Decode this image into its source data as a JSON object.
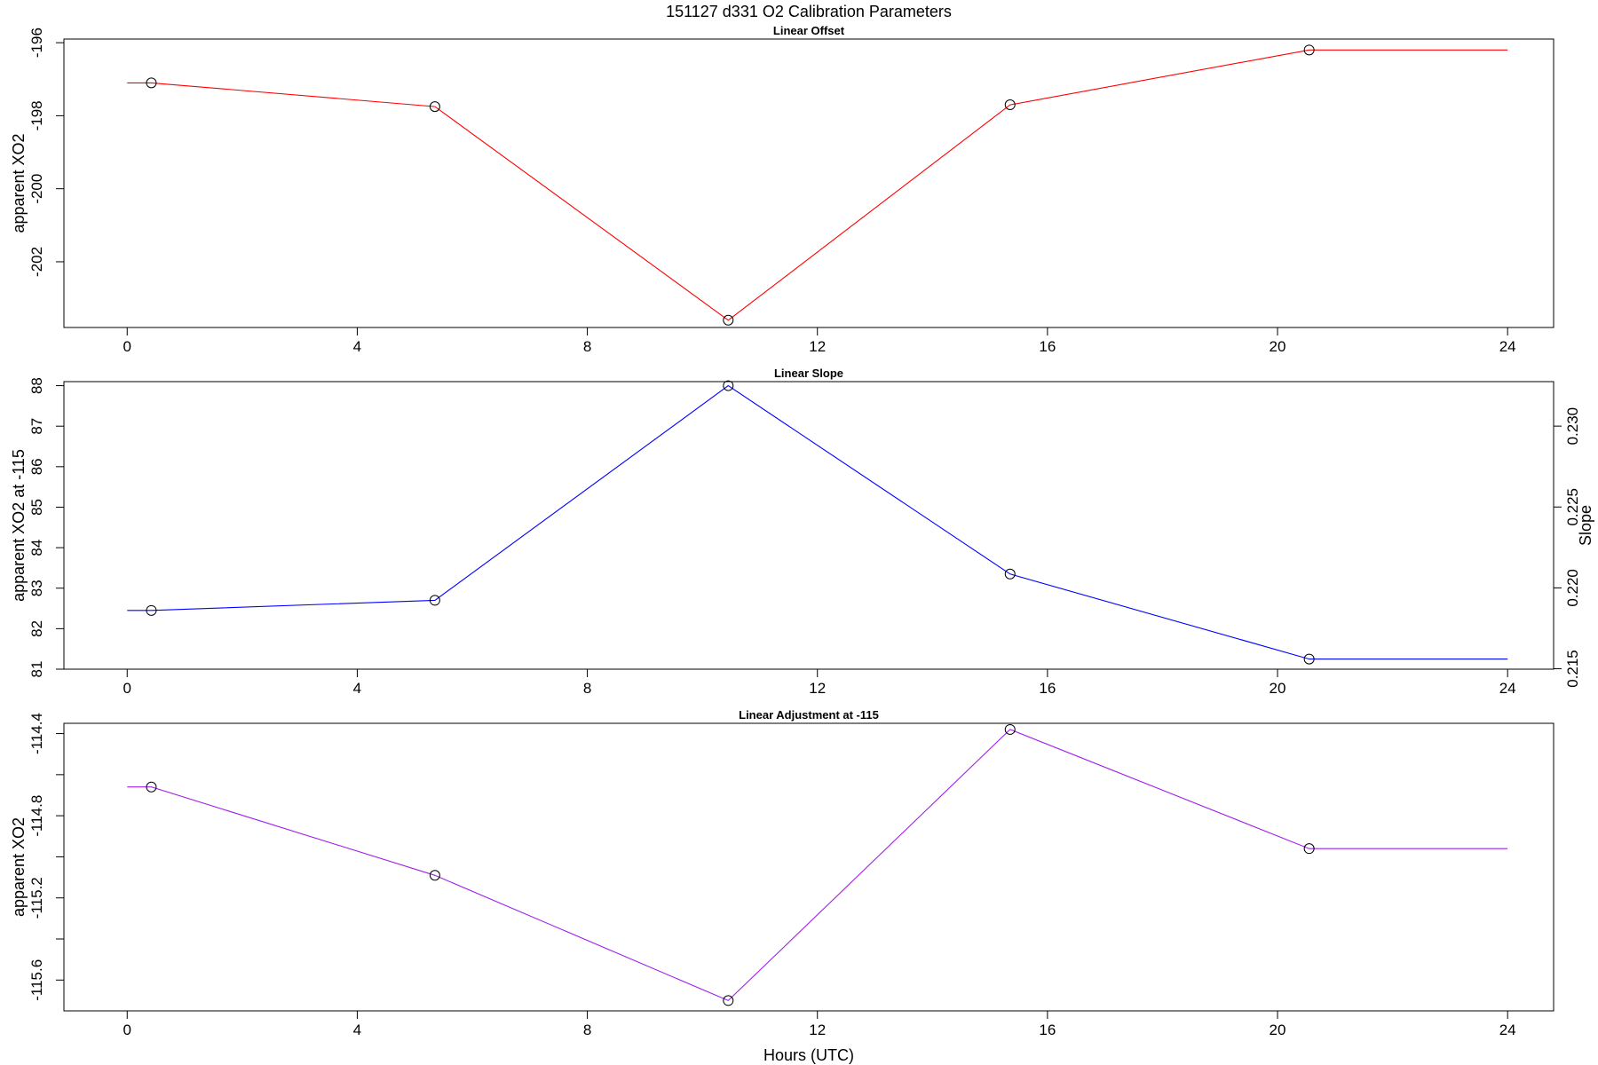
{
  "title": "151127   d331   O2 Calibration Parameters",
  "xlabel": "Hours (UTC)",
  "chart_data": [
    {
      "type": "line",
      "title": "Linear Offset",
      "ylabel": "apparent XO2",
      "xlim": [
        -1.1,
        24.8
      ],
      "ylim": [
        -203.8,
        -195.9
      ],
      "xticks": [
        0,
        4,
        8,
        12,
        16,
        20,
        24
      ],
      "yticks": [
        -196,
        -198,
        -200,
        -202
      ],
      "color": "#ff0000",
      "x": [
        0,
        0.42,
        5.35,
        10.45,
        15.35,
        20.55,
        24
      ],
      "y": [
        -197.1,
        -197.1,
        -197.75,
        -203.6,
        -197.7,
        -196.2,
        -196.2
      ],
      "markers_x": [
        0.42,
        5.35,
        10.45,
        15.35,
        20.55
      ],
      "markers_y": [
        -197.1,
        -197.75,
        -203.6,
        -197.7,
        -196.2
      ]
    },
    {
      "type": "line",
      "title": "Linear Slope",
      "ylabel": "apparent XO2 at -115",
      "ylabel_right": "Slope",
      "xlim": [
        -1.1,
        24.8
      ],
      "ylim": [
        81,
        88.1
      ],
      "xticks": [
        0,
        4,
        8,
        12,
        16,
        20,
        24
      ],
      "yticks": [
        81,
        82,
        83,
        84,
        85,
        86,
        87,
        88
      ],
      "yticks_right": [
        "0.215",
        "0.220",
        "0.225",
        "0.230"
      ],
      "y_right_ref": {
        "left": [
          81.25,
          88.0
        ],
        "right": [
          0.2156,
          0.2325
        ]
      },
      "color": "#0000ff",
      "x": [
        0,
        0.42,
        5.35,
        10.45,
        15.35,
        20.55,
        24
      ],
      "y": [
        82.45,
        82.45,
        82.7,
        88.0,
        83.35,
        81.25,
        81.25
      ],
      "markers_x": [
        0.42,
        5.35,
        10.45,
        15.35,
        20.55
      ],
      "markers_y": [
        82.45,
        82.7,
        88.0,
        83.35,
        81.25
      ]
    },
    {
      "type": "line",
      "title": "Linear Adjustment at -115",
      "ylabel": "apparent XO2",
      "xlim": [
        -1.1,
        24.8
      ],
      "ylim": [
        -115.75,
        -114.35
      ],
      "xticks": [
        0,
        4,
        8,
        12,
        16,
        20,
        24
      ],
      "yticks": [
        -114.4,
        -114.6,
        -114.8,
        -115.0,
        -115.2,
        -115.4,
        -115.6
      ],
      "ytick_labels": [
        "-114.4",
        "",
        "-114.8",
        "",
        "-115.2",
        "",
        "-115.6"
      ],
      "color": "#a020f0",
      "x": [
        0,
        0.42,
        5.35,
        10.45,
        15.35,
        20.55,
        24
      ],
      "y": [
        -114.66,
        -114.66,
        -115.09,
        -115.7,
        -114.38,
        -114.96,
        -114.96
      ],
      "markers_x": [
        0.42,
        5.35,
        10.45,
        15.35,
        20.55
      ],
      "markers_y": [
        -114.66,
        -115.09,
        -115.7,
        -114.38,
        -114.96
      ]
    }
  ]
}
